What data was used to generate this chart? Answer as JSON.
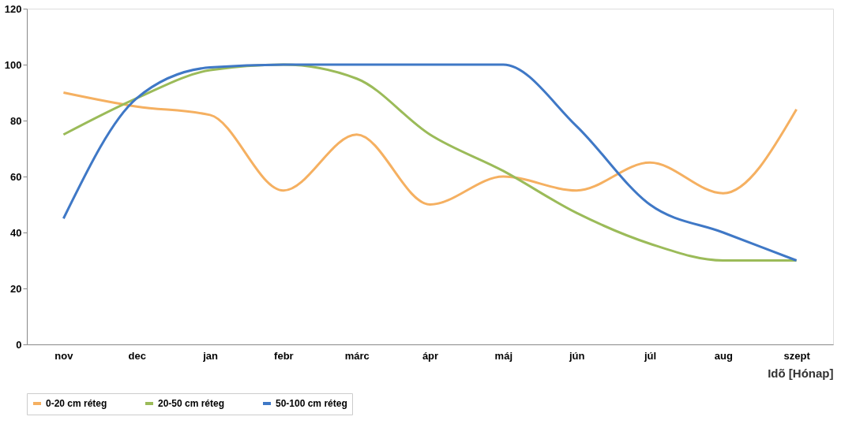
{
  "chart_data": {
    "type": "line",
    "xlabel": "Idõ [Hónap]",
    "categories": [
      "nov",
      "dec",
      "jan",
      "febr",
      "márc",
      "ápr",
      "máj",
      "jún",
      "júl",
      "aug",
      "szept"
    ],
    "series": [
      {
        "name": "0-20 cm réteg",
        "color": "#f5b061",
        "values": [
          90,
          85,
          82,
          55,
          75,
          50,
          60,
          55,
          65,
          54,
          84
        ]
      },
      {
        "name": "20-50 cm réteg",
        "color": "#9bbb59",
        "values": [
          75,
          88,
          98,
          100,
          95,
          75,
          62,
          47,
          36,
          30,
          30
        ]
      },
      {
        "name": "50-100 cm réteg",
        "color": "#3f78c6",
        "values": [
          45,
          88,
          99,
          100,
          100,
          100,
          100,
          78,
          50,
          40,
          30
        ]
      }
    ],
    "ylim": [
      0,
      120
    ],
    "yticks": [
      0,
      20,
      40,
      60,
      80,
      100,
      120
    ],
    "legend": "bottom",
    "marker": "none",
    "line_style": "solid",
    "grid": false
  }
}
